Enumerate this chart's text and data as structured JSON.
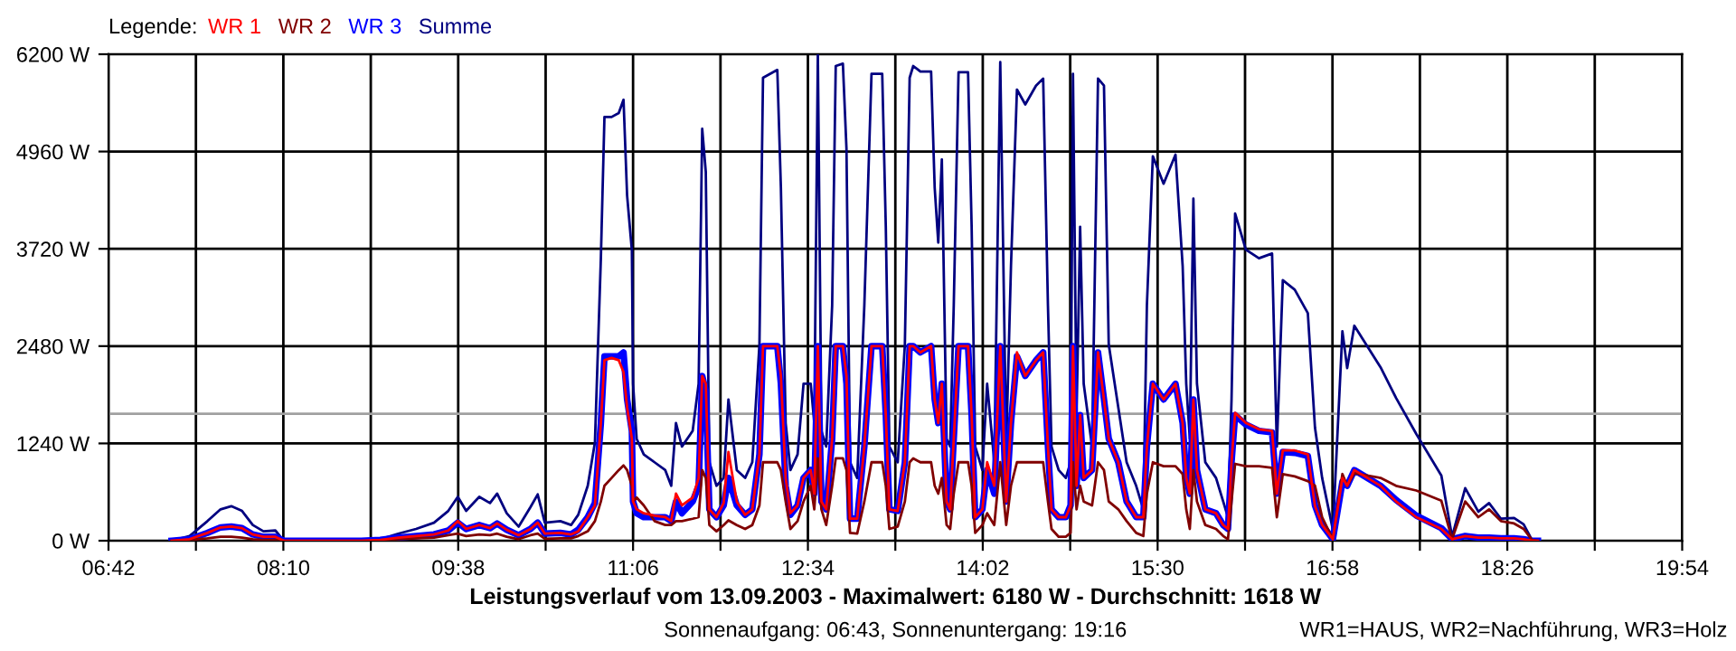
{
  "chart_data": {
    "type": "line",
    "title": "Leistungsverlauf vom 13.09.2003 - Maximalwert: 6180 W - Durchschnitt: 1618 W",
    "subtitle": "Sonnenaufgang: 06:43, Sonnenuntergang: 19:16",
    "annotations": [
      "WR1=HAUS, WR2=Nachführung, WR3=Holz"
    ],
    "legend_title": "Legende:",
    "legend": "top left",
    "grid": true,
    "xlim": [
      6.7,
      19.9
    ],
    "xticks": [
      {
        "value": 6.7,
        "label": "06:42"
      },
      {
        "value": 7.4333,
        "label": null
      },
      {
        "value": 8.1667,
        "label": "08:10"
      },
      {
        "value": 8.9,
        "label": null
      },
      {
        "value": 9.6333,
        "label": "09:38"
      },
      {
        "value": 10.3667,
        "label": null
      },
      {
        "value": 11.1,
        "label": "11:06"
      },
      {
        "value": 11.8333,
        "label": null
      },
      {
        "value": 12.5667,
        "label": "12:34"
      },
      {
        "value": 13.3,
        "label": null
      },
      {
        "value": 14.0333,
        "label": "14:02"
      },
      {
        "value": 14.7667,
        "label": null
      },
      {
        "value": 15.5,
        "label": "15:30"
      },
      {
        "value": 16.2333,
        "label": null
      },
      {
        "value": 16.9667,
        "label": "16:58"
      },
      {
        "value": 17.7,
        "label": null
      },
      {
        "value": 18.4333,
        "label": "18:26"
      },
      {
        "value": 19.1667,
        "label": null
      },
      {
        "value": 19.9,
        "label": "19:54"
      }
    ],
    "ylim": [
      0,
      6200
    ],
    "yticks": [
      {
        "value": 0,
        "label": "0 W"
      },
      {
        "value": 1240,
        "label": "1240 W"
      },
      {
        "value": 2480,
        "label": "2480 W"
      },
      {
        "value": 3720,
        "label": "3720 W"
      },
      {
        "value": 4960,
        "label": "4960 W"
      },
      {
        "value": 6200,
        "label": "6200 W"
      }
    ],
    "ref_lines": [
      {
        "axis": "y",
        "value": 1618,
        "color": "#a0a0a0"
      }
    ],
    "x": [
      7.23,
      7.38,
      7.53,
      7.64,
      7.73,
      7.82,
      7.91,
      8.0,
      8.1,
      8.17,
      8.37,
      8.82,
      8.98,
      9.13,
      9.28,
      9.43,
      9.55,
      9.63,
      9.7,
      9.81,
      9.9,
      9.96,
      10.04,
      10.14,
      10.24,
      10.3,
      10.36,
      10.49,
      10.58,
      10.64,
      10.72,
      10.78,
      10.83,
      10.86,
      10.92,
      10.98,
      11.02,
      11.05,
      11.09,
      11.1,
      11.13,
      11.19,
      11.28,
      11.37,
      11.42,
      11.46,
      11.51,
      11.6,
      11.65,
      11.68,
      11.71,
      11.74,
      11.8,
      11.86,
      11.9,
      11.97,
      12.04,
      12.1,
      12.16,
      12.19,
      12.31,
      12.34,
      12.38,
      12.42,
      12.48,
      12.53,
      12.59,
      12.62,
      12.65,
      12.68,
      12.72,
      12.77,
      12.8,
      12.86,
      12.89,
      12.92,
      12.98,
      13.04,
      13.1,
      13.19,
      13.22,
      13.25,
      13.32,
      13.38,
      13.42,
      13.45,
      13.51,
      13.6,
      13.63,
      13.66,
      13.69,
      13.73,
      13.76,
      13.79,
      13.83,
      13.91,
      13.94,
      13.97,
      14.03,
      14.07,
      14.13,
      14.18,
      14.23,
      14.27,
      14.32,
      14.39,
      14.48,
      14.54,
      14.58,
      14.61,
      14.67,
      14.73,
      14.77,
      14.79,
      14.82,
      14.85,
      14.88,
      14.95,
      15.0,
      15.05,
      15.09,
      15.17,
      15.24,
      15.32,
      15.38,
      15.41,
      15.46,
      15.55,
      15.65,
      15.71,
      15.74,
      15.77,
      15.8,
      15.83,
      15.9,
      15.99,
      16.05,
      16.09,
      16.12,
      16.15,
      16.24,
      16.35,
      16.46,
      16.5,
      16.55,
      16.65,
      16.76,
      16.82,
      16.88,
      16.97,
      17.05,
      17.09,
      17.15,
      17.37,
      17.5,
      17.67,
      17.88,
      17.97,
      18.08,
      18.19,
      18.28,
      18.38,
      18.49,
      18.57,
      18.64,
      18.69
    ],
    "series": [
      {
        "name": "WR 1",
        "color": "#ff0000",
        "values": [
          0,
          20,
          100,
          170,
          180,
          160,
          80,
          50,
          50,
          0,
          0,
          0,
          10,
          40,
          60,
          80,
          130,
          250,
          150,
          200,
          160,
          220,
          140,
          70,
          150,
          230,
          90,
          100,
          80,
          120,
          300,
          450,
          1500,
          2300,
          2330,
          2300,
          2150,
          1700,
          1300,
          500,
          400,
          350,
          320,
          300,
          250,
          600,
          450,
          550,
          800,
          2100,
          2000,
          400,
          300,
          480,
          1130,
          500,
          330,
          400,
          1100,
          2480,
          2480,
          2100,
          800,
          350,
          450,
          800,
          900,
          600,
          2480,
          500,
          400,
          1300,
          2480,
          2480,
          2100,
          280,
          280,
          1200,
          2480,
          2480,
          1600,
          400,
          380,
          1000,
          2480,
          2480,
          2400,
          2480,
          1800,
          1500,
          2000,
          500,
          400,
          1300,
          2480,
          2480,
          1600,
          300,
          400,
          1000,
          700,
          2480,
          500,
          1500,
          2400,
          2100,
          2300,
          2400,
          1200,
          400,
          300,
          300,
          450,
          2480,
          700,
          1600,
          800,
          900,
          2400,
          1800,
          1300,
          1000,
          500,
          300,
          300,
          1200,
          2000,
          1800,
          2000,
          1500,
          800,
          600,
          1800,
          900,
          400,
          350,
          200,
          150,
          1000,
          1630,
          1500,
          1420,
          1400,
          600,
          1150,
          1150,
          1100,
          440,
          200,
          20,
          800,
          700,
          900,
          700,
          500,
          300,
          150,
          20,
          60,
          40,
          40,
          30,
          30,
          20,
          0,
          0
        ]
      },
      {
        "name": "WR 2",
        "color": "#800000",
        "values": [
          0,
          10,
          30,
          50,
          50,
          40,
          20,
          10,
          10,
          0,
          0,
          0,
          0,
          20,
          30,
          40,
          70,
          90,
          60,
          80,
          70,
          90,
          50,
          20,
          70,
          90,
          25,
          30,
          30,
          60,
          120,
          250,
          500,
          700,
          800,
          900,
          960,
          900,
          700,
          500,
          550,
          450,
          250,
          200,
          200,
          250,
          250,
          280,
          300,
          900,
          800,
          200,
          120,
          200,
          260,
          200,
          150,
          200,
          450,
          1000,
          1000,
          900,
          500,
          150,
          250,
          500,
          700,
          400,
          1050,
          400,
          200,
          700,
          1050,
          1050,
          900,
          100,
          90,
          500,
          1000,
          1000,
          700,
          150,
          180,
          500,
          1000,
          1050,
          1000,
          1000,
          700,
          600,
          800,
          200,
          150,
          600,
          1000,
          1000,
          700,
          100,
          200,
          350,
          200,
          1000,
          200,
          700,
          1000,
          1000,
          1000,
          1000,
          500,
          150,
          50,
          50,
          100,
          1000,
          400,
          700,
          500,
          450,
          1000,
          900,
          500,
          400,
          250,
          100,
          60,
          600,
          1000,
          950,
          950,
          850,
          400,
          150,
          900,
          500,
          200,
          150,
          60,
          20,
          500,
          980,
          950,
          950,
          930,
          300,
          850,
          820,
          760,
          700,
          300,
          20,
          850,
          700,
          860,
          800,
          700,
          640,
          510,
          20,
          500,
          300,
          400,
          250,
          220,
          150,
          10,
          0
        ]
      },
      {
        "name": "WR 3",
        "color": "#0000ff",
        "values": [
          0,
          20,
          100,
          170,
          180,
          160,
          80,
          50,
          50,
          0,
          0,
          0,
          10,
          40,
          60,
          80,
          130,
          230,
          150,
          200,
          160,
          220,
          140,
          70,
          150,
          230,
          90,
          100,
          80,
          140,
          300,
          480,
          1500,
          2350,
          2350,
          2350,
          2400,
          1800,
          1400,
          500,
          350,
          300,
          300,
          300,
          250,
          500,
          350,
          500,
          700,
          2100,
          1900,
          400,
          300,
          450,
          800,
          450,
          330,
          400,
          1100,
          2480,
          2480,
          2000,
          700,
          330,
          450,
          800,
          900,
          600,
          2480,
          500,
          400,
          1300,
          2480,
          2480,
          2000,
          280,
          280,
          1200,
          2480,
          2480,
          1600,
          400,
          380,
          1000,
          2480,
          2480,
          2400,
          2480,
          1800,
          1500,
          2000,
          500,
          400,
          1300,
          2480,
          2480,
          1600,
          300,
          400,
          900,
          600,
          2480,
          500,
          1500,
          2350,
          2100,
          2300,
          2400,
          1200,
          400,
          300,
          300,
          450,
          2480,
          700,
          1600,
          800,
          900,
          2400,
          1800,
          1300,
          1000,
          500,
          300,
          300,
          1200,
          2000,
          1800,
          2000,
          1500,
          800,
          600,
          1800,
          900,
          400,
          350,
          200,
          150,
          1000,
          1600,
          1480,
          1400,
          1380,
          600,
          1130,
          1120,
          1080,
          450,
          200,
          20,
          750,
          700,
          900,
          700,
          520,
          320,
          160,
          20,
          60,
          40,
          40,
          30,
          30,
          20,
          0,
          0
        ]
      },
      {
        "name": "Summe",
        "color": "#000080",
        "values": [
          0,
          60,
          250,
          400,
          440,
          380,
          200,
          120,
          130,
          0,
          0,
          0,
          20,
          90,
          150,
          230,
          380,
          560,
          380,
          560,
          480,
          600,
          350,
          180,
          430,
          590,
          230,
          250,
          200,
          330,
          700,
          1250,
          3600,
          5400,
          5400,
          5450,
          5620,
          4400,
          3700,
          2000,
          1300,
          1100,
          1000,
          900,
          700,
          1500,
          1200,
          1400,
          2000,
          5250,
          4700,
          1000,
          700,
          800,
          1800,
          900,
          800,
          1000,
          2500,
          5900,
          6000,
          4500,
          1500,
          900,
          1100,
          2000,
          2000,
          1500,
          6200,
          1400,
          1200,
          3000,
          6050,
          6080,
          5000,
          1000,
          800,
          3000,
          5950,
          5950,
          4000,
          1200,
          1000,
          2500,
          5900,
          6050,
          5980,
          5980,
          4500,
          3800,
          4860,
          1300,
          1200,
          3000,
          5970,
          5970,
          4000,
          1200,
          900,
          2000,
          1000,
          6100,
          1200,
          3500,
          5750,
          5560,
          5800,
          5890,
          3000,
          1200,
          900,
          800,
          1000,
          5950,
          1600,
          4000,
          2000,
          1200,
          5890,
          5800,
          2500,
          1700,
          1000,
          700,
          400,
          3000,
          4900,
          4550,
          4920,
          3500,
          2000,
          1300,
          4360,
          2000,
          1000,
          800,
          500,
          300,
          1800,
          4170,
          3710,
          3600,
          3660,
          1200,
          3320,
          3200,
          2900,
          1440,
          800,
          140,
          2670,
          2200,
          2740,
          2210,
          1820,
          1360,
          830,
          50,
          670,
          370,
          480,
          280,
          290,
          210,
          10,
          0
        ]
      }
    ]
  }
}
